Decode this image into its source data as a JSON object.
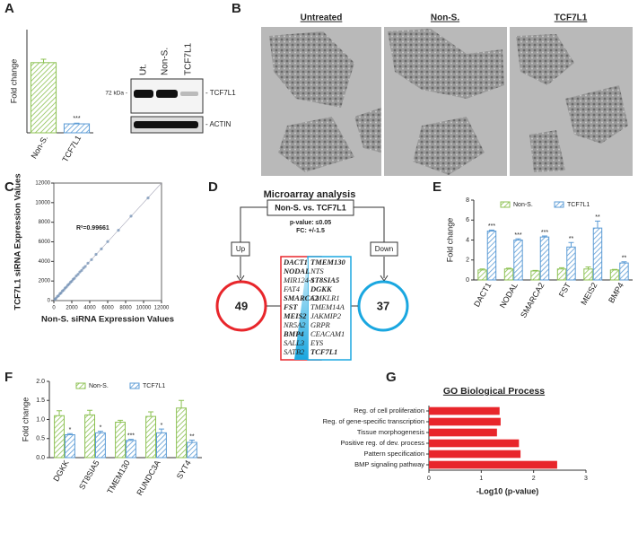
{
  "panels": [
    "A",
    "B",
    "C",
    "D",
    "E",
    "F",
    "G"
  ],
  "blot": {
    "lanes": [
      "Ut.",
      "Non-S.",
      "TCF7L1"
    ],
    "marker": "72 kDa -",
    "bands": [
      "- TCF7L1",
      "- ACTIN"
    ]
  },
  "micrograph": {
    "titles": [
      "Untreated",
      "Non-S.",
      "TCF7L1"
    ]
  },
  "diagram": {
    "title": "Microarray analysis",
    "comparison": "Non-S. vs. TCF7L1",
    "pvalue": "p-value: ≤0.05",
    "fc": "FC: +/-1.5",
    "up": {
      "label": "Up",
      "count": "49",
      "genes": [
        {
          "name": "DACT1",
          "bold": true
        },
        {
          "name": "NODAL",
          "bold": true
        },
        {
          "name": "MIR124-1",
          "bold": false
        },
        {
          "name": "FAT4",
          "bold": false
        },
        {
          "name": "SMARCA2",
          "bold": true
        },
        {
          "name": "FST",
          "bold": true
        },
        {
          "name": "MEIS2",
          "bold": true
        },
        {
          "name": "NR5A2",
          "bold": false
        },
        {
          "name": "BMP4",
          "bold": true
        },
        {
          "name": "SALL3",
          "bold": false
        },
        {
          "name": "SATB2",
          "bold": false
        }
      ]
    },
    "down": {
      "label": "Down",
      "count": "37",
      "genes": [
        {
          "name": "TMEM130",
          "bold": true
        },
        {
          "name": "NTS",
          "bold": false
        },
        {
          "name": "ST8SIA5",
          "bold": true
        },
        {
          "name": "DGKK",
          "bold": true
        },
        {
          "name": "CMKLR1",
          "bold": false
        },
        {
          "name": "TMEM14A",
          "bold": false
        },
        {
          "name": "JAKMIP2",
          "bold": false
        },
        {
          "name": "GRPR",
          "bold": false
        },
        {
          "name": "CEACAM1",
          "bold": false
        },
        {
          "name": "EYS",
          "bold": false
        },
        {
          "name": "TCF7L1",
          "bold": true
        }
      ]
    }
  },
  "chart_data": [
    {
      "type": "bar",
      "y_label": "Fold change",
      "categories": [
        "Non-S.",
        "TCF7L1"
      ],
      "values": [
        1.02,
        0.13
      ],
      "errors": [
        0.05,
        0.01
      ],
      "colors": [
        "#8cc152",
        "#5b9bd5"
      ],
      "annotations": [
        null,
        "***"
      ],
      "ylim": [
        0,
        1.5
      ]
    },
    {
      "type": "scatter",
      "x_label": "Non-S. siRNA Expression Values",
      "y_label": "TCF7L1 siRNA Expression Values",
      "annotation": "R²=0.99661",
      "color": "#6f8fb3",
      "x": [
        120,
        250,
        400,
        520,
        680,
        800,
        950,
        1100,
        1250,
        1400,
        1550,
        1700,
        1850,
        2000,
        2150,
        2300,
        2500,
        2700,
        2900,
        3100,
        3300,
        3500,
        3800,
        4200,
        4700,
        5300,
        6000,
        7200,
        8600,
        10500
      ],
      "y": [
        130,
        240,
        420,
        500,
        700,
        780,
        970,
        1080,
        1270,
        1380,
        1570,
        1680,
        1870,
        1980,
        2170,
        2280,
        2520,
        2680,
        2920,
        3080,
        3320,
        3480,
        3820,
        4180,
        4720,
        5280,
        6020,
        7180,
        8620,
        10480
      ],
      "xlim": [
        0,
        12000
      ],
      "ylim": [
        0,
        12000
      ],
      "xticks": [
        0,
        2000,
        4000,
        6000,
        8000,
        10000,
        12000
      ],
      "yticks": [
        0,
        2000,
        4000,
        6000,
        8000,
        10000,
        12000
      ]
    },
    {
      "type": "grouped_bar",
      "y_label": "Fold change",
      "categories": [
        "DACT1",
        "NODAL",
        "SMARCA2",
        "FST",
        "MEIS2",
        "BMP4"
      ],
      "series": [
        {
          "name": "Non-S.",
          "color": "#8cc152",
          "values": [
            1.0,
            1.1,
            0.9,
            1.1,
            1.1,
            1.0
          ],
          "errors": [
            0.1,
            0.08,
            0.05,
            0.12,
            0.2,
            0.06
          ]
        },
        {
          "name": "TCF7L1",
          "color": "#5b9bd5",
          "values": [
            4.9,
            4.0,
            4.3,
            3.3,
            5.2,
            1.7
          ],
          "errors": [
            0.1,
            0.12,
            0.1,
            0.45,
            0.7,
            0.12
          ]
        }
      ],
      "annotations": [
        "***",
        "***",
        "***",
        "**",
        "**",
        "**"
      ],
      "ylim": [
        0,
        8
      ],
      "yticks": [
        0,
        2,
        4,
        6,
        8
      ]
    },
    {
      "type": "grouped_bar",
      "y_label": "Fold change",
      "categories": [
        "DGKK",
        "ST8SIA5",
        "TMEM130",
        "RUNDC3A",
        "SYT4"
      ],
      "series": [
        {
          "name": "Non-S.",
          "color": "#8cc152",
          "values": [
            1.1,
            1.12,
            0.93,
            1.08,
            1.3
          ],
          "errors": [
            0.13,
            0.12,
            0.05,
            0.12,
            0.2
          ]
        },
        {
          "name": "TCF7L1",
          "color": "#5b9bd5",
          "values": [
            0.6,
            0.65,
            0.45,
            0.65,
            0.4
          ],
          "errors": [
            0.03,
            0.04,
            0.03,
            0.1,
            0.06
          ]
        }
      ],
      "annotations": [
        "*",
        "*",
        "***",
        "*",
        "**"
      ],
      "ylim": [
        0,
        2
      ],
      "yticks": [
        {
          "value": 0,
          "label": "0.0"
        },
        {
          "value": 0.5,
          "label": "0.5"
        },
        {
          "value": 1,
          "label": "1.0"
        },
        {
          "value": 1.5,
          "label": "1.5"
        },
        {
          "value": 2,
          "label": "2.0"
        }
      ]
    },
    {
      "type": "barh",
      "title": "GO Biological Process",
      "x_label": "-Log10 (p-value)",
      "color": "#e8262b",
      "categories": [
        "Reg. of cell proliferation",
        "Reg. of gene-specific transcription",
        "Tissue morphogenesis",
        "Positive reg. of dev. process",
        "Pattern specification",
        "BMP signaling pathway"
      ],
      "values": [
        1.35,
        1.37,
        1.3,
        1.72,
        1.75,
        2.45
      ],
      "xlim": [
        0,
        3
      ],
      "xticks": [
        0,
        1,
        2,
        3
      ]
    }
  ]
}
